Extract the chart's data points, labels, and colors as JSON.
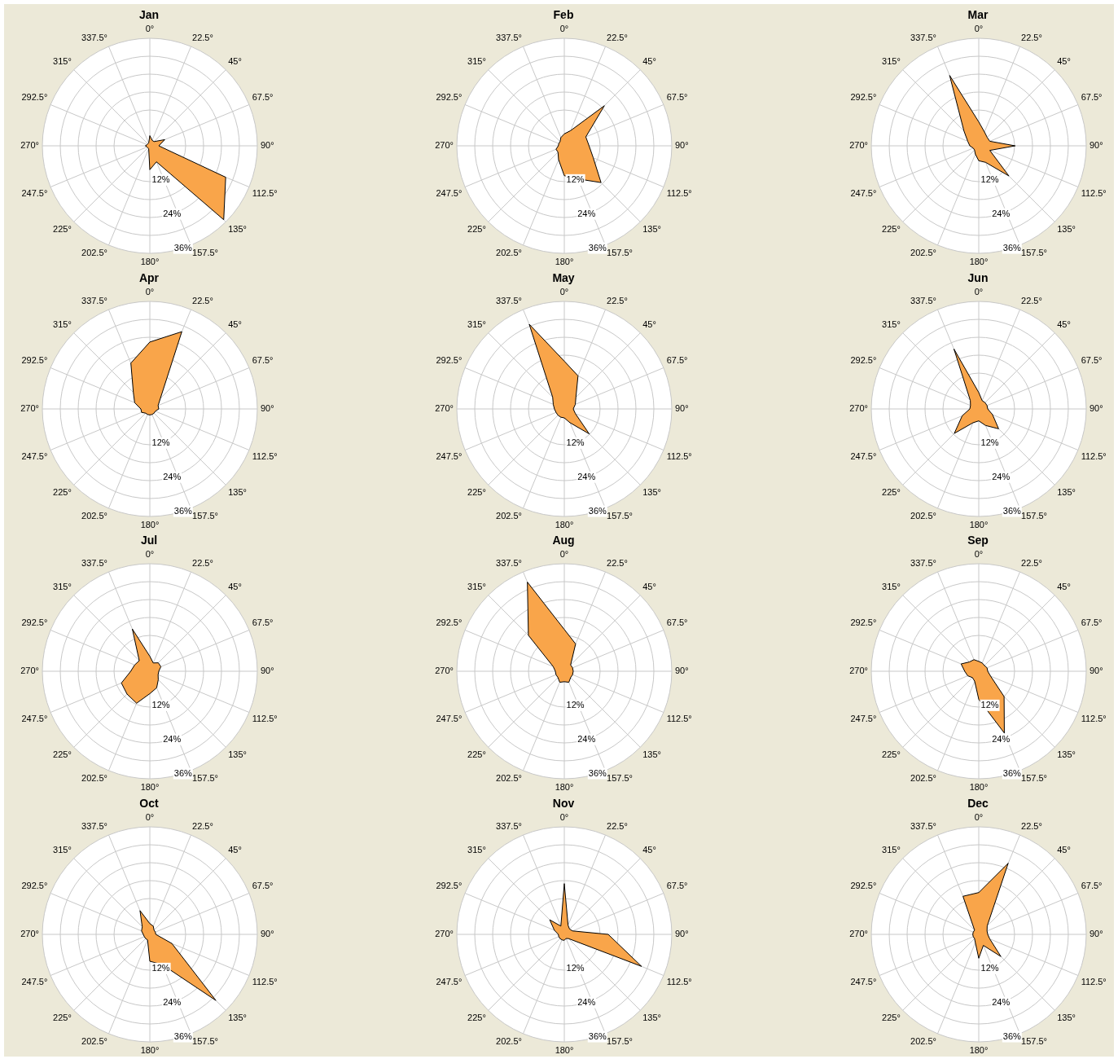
{
  "chart_data": [
    {
      "type": "radar",
      "title": "Jan",
      "categories": [
        "0°",
        "22.5°",
        "45°",
        "67.5°",
        "90°",
        "112.5°",
        "135°",
        "157.5°",
        "180°",
        "202.5°",
        "225°",
        "247.5°",
        "270°",
        "292.5°",
        "315°",
        "337.5°"
      ],
      "ylim": [
        0,
        36
      ],
      "yticks": [
        {
          "value": 12,
          "label": "12%"
        },
        {
          "value": 24,
          "label": "24%"
        },
        {
          "value": 36,
          "label": "36%"
        }
      ],
      "grid": true,
      "series": [
        {
          "color": "#f9a54a",
          "values": [
            3.4,
            2,
            2,
            5.4,
            3,
            27.5,
            35,
            5.8,
            8,
            1,
            1,
            1,
            1.5,
            1,
            1,
            1
          ]
        }
      ]
    },
    {
      "type": "radar",
      "title": "Feb",
      "categories": [
        "0°",
        "22.5°",
        "45°",
        "67.5°",
        "90°",
        "112.5°",
        "135°",
        "157.5°",
        "180°",
        "202.5°",
        "225°",
        "247.5°",
        "270°",
        "292.5°",
        "315°",
        "337.5°"
      ],
      "ylim": [
        0,
        36
      ],
      "yticks": [
        {
          "value": 12,
          "label": "12%"
        },
        {
          "value": 24,
          "label": "24%"
        },
        {
          "value": 36,
          "label": "36%"
        }
      ],
      "grid": true,
      "series": [
        {
          "color": "#f9a54a",
          "values": [
            4,
            5.5,
            19,
            7.8,
            8.3,
            10.5,
            17.4,
            12,
            10,
            5,
            3,
            3,
            2,
            2,
            2,
            3
          ]
        }
      ]
    },
    {
      "type": "radar",
      "title": "Mar",
      "categories": [
        "0°",
        "22.5°",
        "45°",
        "67.5°",
        "90°",
        "112.5°",
        "135°",
        "157.5°",
        "180°",
        "202.5°",
        "225°",
        "247.5°",
        "270°",
        "292.5°",
        "315°",
        "337.5°"
      ],
      "ylim": [
        0,
        36
      ],
      "yticks": [
        {
          "value": 12,
          "label": "12%"
        },
        {
          "value": 24,
          "label": "24%"
        },
        {
          "value": 36,
          "label": "36%"
        }
      ],
      "grid": true,
      "series": [
        {
          "color": "#f9a54a",
          "values": [
            8,
            5,
            4,
            4,
            12.2,
            4,
            14.3,
            6,
            5,
            3,
            2,
            2,
            3,
            4,
            7,
            25.5
          ]
        }
      ]
    },
    {
      "type": "radar",
      "title": "Apr",
      "categories": [
        "0°",
        "22.5°",
        "45°",
        "67.5°",
        "90°",
        "112.5°",
        "135°",
        "157.5°",
        "180°",
        "202.5°",
        "225°",
        "247.5°",
        "270°",
        "292.5°",
        "315°",
        "337.5°"
      ],
      "ylim": [
        0,
        36
      ],
      "yticks": [
        {
          "value": 12,
          "label": "12%"
        },
        {
          "value": 24,
          "label": "24%"
        },
        {
          "value": 36,
          "label": "36%"
        }
      ],
      "grid": true,
      "series": [
        {
          "color": "#f9a54a",
          "values": [
            22.4,
            28,
            5,
            3,
            3,
            2,
            2,
            2,
            2,
            2,
            2,
            3,
            3,
            5.5,
            7.8,
            16.6
          ]
        }
      ]
    },
    {
      "type": "radar",
      "title": "May",
      "categories": [
        "0°",
        "22.5°",
        "45°",
        "67.5°",
        "90°",
        "112.5°",
        "135°",
        "157.5°",
        "180°",
        "202.5°",
        "225°",
        "247.5°",
        "270°",
        "292.5°",
        "315°",
        "337.5°"
      ],
      "ylim": [
        0,
        36
      ],
      "yticks": [
        {
          "value": 12,
          "label": "12%"
        },
        {
          "value": 24,
          "label": "24%"
        },
        {
          "value": 36,
          "label": "36%"
        }
      ],
      "grid": true,
      "series": [
        {
          "color": "#f9a54a",
          "values": [
            16,
            12,
            5.5,
            4,
            3,
            4,
            11.8,
            5,
            3,
            3,
            3,
            3,
            3.3,
            4,
            5.5,
            30.7
          ]
        }
      ]
    },
    {
      "type": "radar",
      "title": "Jun",
      "categories": [
        "0°",
        "22.5°",
        "45°",
        "67.5°",
        "90°",
        "112.5°",
        "135°",
        "157.5°",
        "180°",
        "202.5°",
        "225°",
        "247.5°",
        "270°",
        "292.5°",
        "315°",
        "337.5°"
      ],
      "ylim": [
        0,
        36
      ],
      "yticks": [
        {
          "value": 12,
          "label": "12%"
        },
        {
          "value": 24,
          "label": "24%"
        },
        {
          "value": 36,
          "label": "36%"
        }
      ],
      "grid": true,
      "series": [
        {
          "color": "#f9a54a",
          "values": [
            5.5,
            3,
            3,
            3,
            3,
            5,
            9.4,
            6,
            4,
            5,
            11.6,
            6,
            3,
            3,
            4,
            21.7
          ]
        }
      ]
    },
    {
      "type": "radar",
      "title": "Jul",
      "categories": [
        "0°",
        "22.5°",
        "45°",
        "67.5°",
        "90°",
        "112.5°",
        "135°",
        "157.5°",
        "180°",
        "202.5°",
        "225°",
        "247.5°",
        "270°",
        "292.5°",
        "315°",
        "337.5°"
      ],
      "ylim": [
        0,
        36
      ],
      "yticks": [
        {
          "value": 12,
          "label": "12%"
        },
        {
          "value": 24,
          "label": "24%"
        },
        {
          "value": 36,
          "label": "36%"
        }
      ],
      "grid": true,
      "series": [
        {
          "color": "#f9a54a",
          "values": [
            5,
            3,
            4,
            4,
            3,
            3,
            4,
            6,
            7.5,
            11.6,
            10.8,
            10.3,
            6.4,
            5.5,
            5,
            15.3
          ]
        }
      ]
    },
    {
      "type": "radar",
      "title": "Aug",
      "categories": [
        "0°",
        "22.5°",
        "45°",
        "67.5°",
        "90°",
        "112.5°",
        "135°",
        "157.5°",
        "180°",
        "202.5°",
        "225°",
        "247.5°",
        "270°",
        "292.5°",
        "315°",
        "337.5°"
      ],
      "ylim": [
        0,
        36
      ],
      "yticks": [
        {
          "value": 12,
          "label": "12%"
        },
        {
          "value": 24,
          "label": "24%"
        },
        {
          "value": 36,
          "label": "36%"
        }
      ],
      "grid": true,
      "series": [
        {
          "color": "#f9a54a",
          "values": [
            14,
            9.9,
            3,
            3,
            3,
            3,
            3,
            4,
            3.5,
            4,
            3,
            3,
            3,
            4,
            17,
            32.3
          ]
        }
      ]
    },
    {
      "type": "radar",
      "title": "Sep",
      "categories": [
        "0°",
        "22.5°",
        "45°",
        "67.5°",
        "90°",
        "112.5°",
        "135°",
        "157.5°",
        "180°",
        "202.5°",
        "225°",
        "247.5°",
        "270°",
        "292.5°",
        "315°",
        "337.5°"
      ],
      "ylim": [
        0,
        36
      ],
      "yticks": [
        {
          "value": 12,
          "label": "12%"
        },
        {
          "value": 24,
          "label": "24%"
        },
        {
          "value": 36,
          "label": "36%"
        }
      ],
      "grid": true,
      "series": [
        {
          "color": "#f9a54a",
          "values": [
            3.3,
            3,
            2.7,
            3,
            3,
            4.3,
            12,
            22.4,
            9.4,
            3.6,
            3,
            4,
            4.7,
            6.4,
            4.4,
            4.2
          ]
        }
      ]
    },
    {
      "type": "radar",
      "title": "Oct",
      "categories": [
        "0°",
        "22.5°",
        "45°",
        "67.5°",
        "90°",
        "112.5°",
        "135°",
        "157.5°",
        "180°",
        "202.5°",
        "225°",
        "247.5°",
        "270°",
        "292.5°",
        "315°",
        "337.5°"
      ],
      "ylim": [
        0,
        36
      ],
      "yticks": [
        {
          "value": 12,
          "label": "12%"
        },
        {
          "value": 24,
          "label": "24%"
        },
        {
          "value": 36,
          "label": "36%"
        }
      ],
      "grid": true,
      "series": [
        {
          "color": "#f9a54a",
          "values": [
            3.6,
            3,
            2,
            2,
            2,
            8,
            31.3,
            11,
            9,
            2,
            2,
            2,
            2.2,
            3,
            3.6,
            8.6
          ]
        }
      ]
    },
    {
      "type": "radar",
      "title": "Nov",
      "categories": [
        "0°",
        "22.5°",
        "45°",
        "67.5°",
        "90°",
        "112.5°",
        "135°",
        "157.5°",
        "180°",
        "202.5°",
        "225°",
        "247.5°",
        "270°",
        "292.5°",
        "315°",
        "337.5°"
      ],
      "ylim": [
        0,
        36
      ],
      "yticks": [
        {
          "value": 12,
          "label": "12%"
        },
        {
          "value": 24,
          "label": "24%"
        },
        {
          "value": 36,
          "label": "36%"
        }
      ],
      "grid": true,
      "series": [
        {
          "color": "#f9a54a",
          "values": [
            17,
            3.3,
            2.5,
            3,
            14.7,
            28,
            2,
            1.5,
            2,
            2,
            2,
            2,
            2,
            3.6,
            6.9,
            3
          ]
        }
      ]
    },
    {
      "type": "radar",
      "title": "Dec",
      "categories": [
        "0°",
        "22.5°",
        "45°",
        "67.5°",
        "90°",
        "112.5°",
        "135°",
        "157.5°",
        "180°",
        "202.5°",
        "225°",
        "247.5°",
        "270°",
        "292.5°",
        "315°",
        "337.5°"
      ],
      "ylim": [
        0,
        36
      ],
      "yticks": [
        {
          "value": 12,
          "label": "12%"
        },
        {
          "value": 24,
          "label": "24%"
        },
        {
          "value": 36,
          "label": "36%"
        }
      ],
      "grid": true,
      "series": [
        {
          "color": "#f9a54a",
          "values": [
            14,
            25.8,
            4,
            3,
            3,
            4,
            10.5,
            4,
            8,
            3,
            2,
            2,
            2,
            2,
            2,
            13.8
          ]
        }
      ]
    }
  ]
}
